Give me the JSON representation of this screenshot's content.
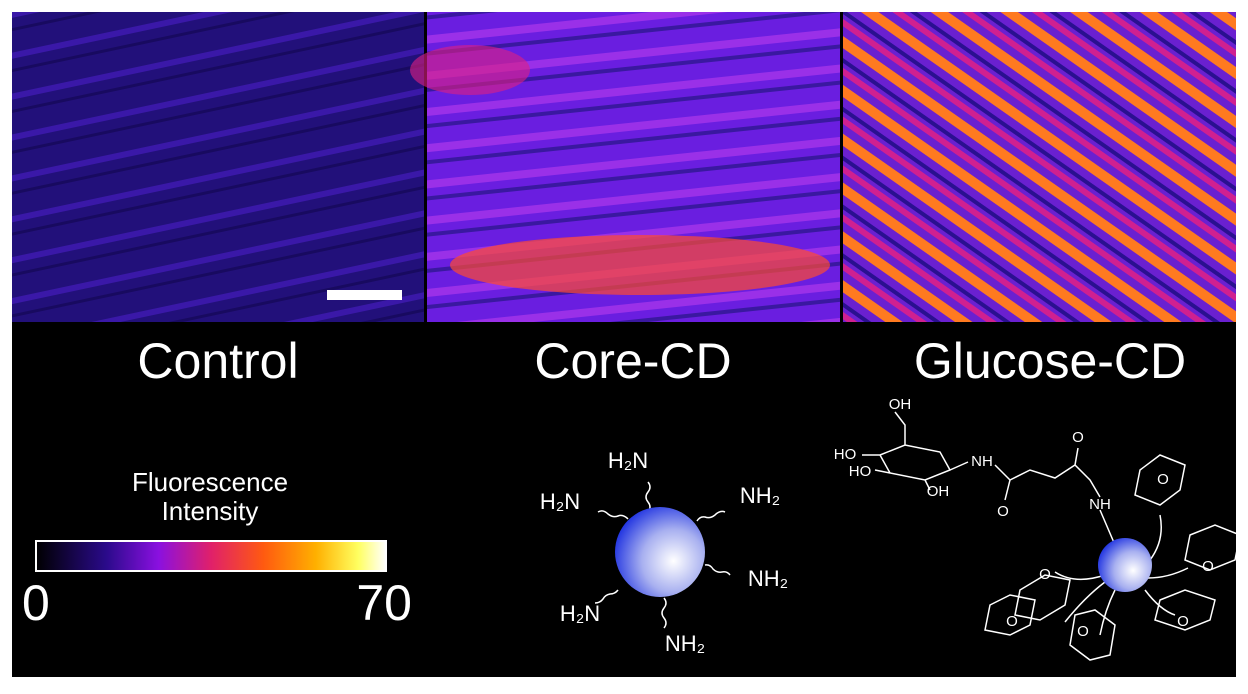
{
  "panels": [
    {
      "label": "Control"
    },
    {
      "label": "Core-CD"
    },
    {
      "label": "Glucose-CD"
    }
  ],
  "colorbar": {
    "title_lines": [
      "Fluorescence",
      "Intensity"
    ],
    "min": 0,
    "max": 70
  },
  "core_cd": {
    "groups": [
      "H₂N",
      "H₂N",
      "NH₂",
      "NH₂",
      "H₂N",
      "NH₂"
    ]
  },
  "glucose_cd": {
    "labels": [
      "OH",
      "HO",
      "HO",
      "OH",
      "NH",
      "O",
      "O",
      "NH",
      "O",
      "O",
      "O",
      "O",
      "O",
      "O"
    ]
  }
}
